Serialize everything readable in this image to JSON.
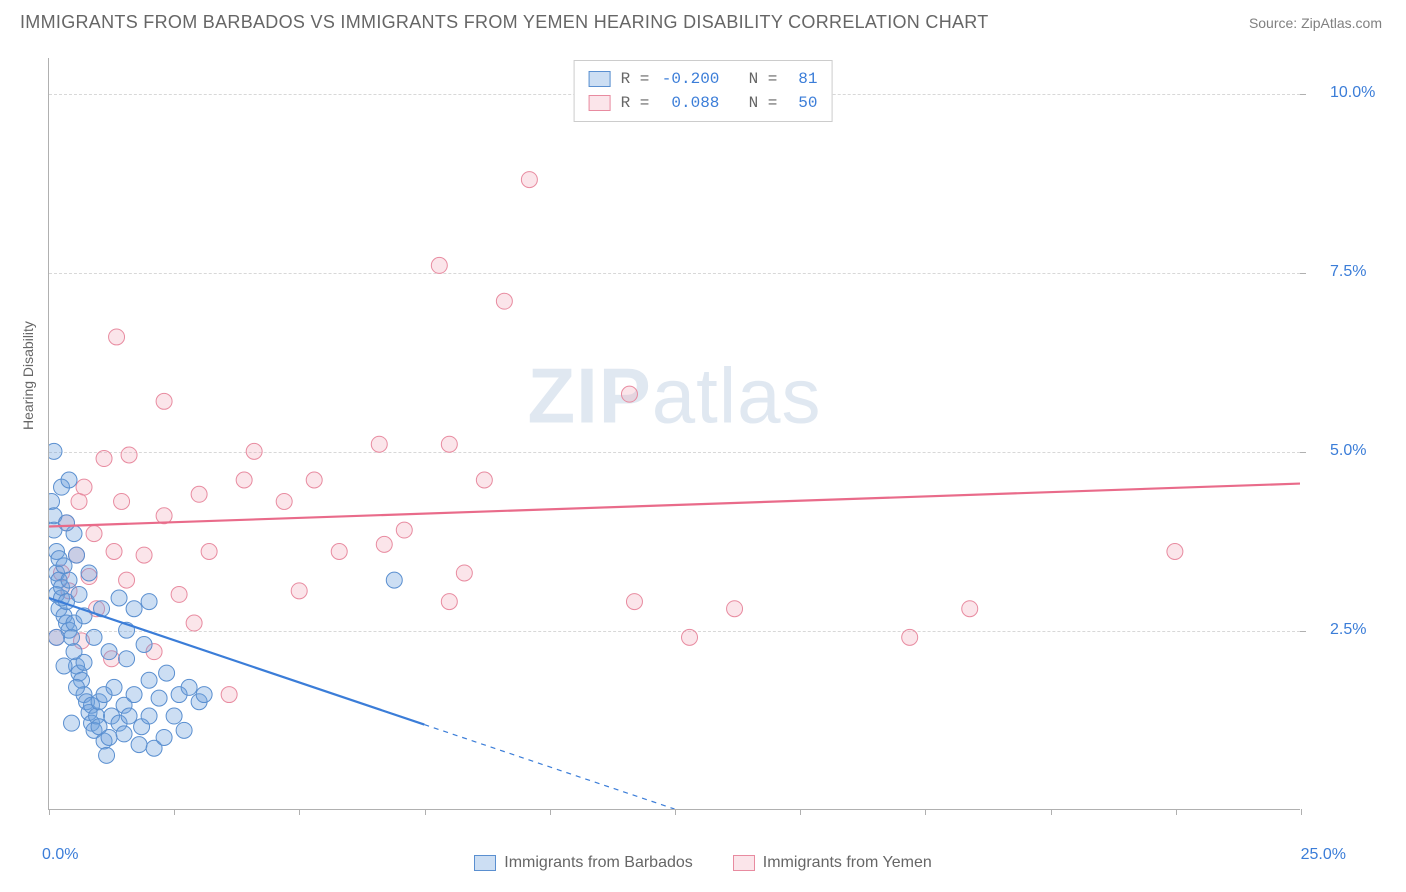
{
  "title": "IMMIGRANTS FROM BARBADOS VS IMMIGRANTS FROM YEMEN HEARING DISABILITY CORRELATION CHART",
  "source": "Source: ZipAtlas.com",
  "watermark_bold": "ZIP",
  "watermark_light": "atlas",
  "y_axis_label": "Hearing Disability",
  "chart": {
    "type": "scatter",
    "xlim": [
      0,
      25
    ],
    "ylim": [
      0,
      10.5
    ],
    "x_ticks": [
      0,
      2.5,
      5,
      7.5,
      10,
      12.5,
      15,
      17.5,
      20,
      22.5,
      25
    ],
    "x_tick_labels": {
      "0": "0.0%",
      "25": "25.0%"
    },
    "y_grid": [
      2.5,
      5.0,
      7.5,
      10.0
    ],
    "y_tick_labels": {
      "2.5": "2.5%",
      "5.0": "5.0%",
      "7.5": "7.5%",
      "10.0": "10.0%"
    },
    "background_color": "#ffffff",
    "grid_color": "#d8d8d8",
    "axis_color": "#b0b0b0",
    "marker_radius": 8,
    "series": {
      "barbados": {
        "label": "Immigrants from Barbados",
        "fill": "rgba(110,160,220,0.35)",
        "stroke": "#5a8fd0",
        "R": "-0.200",
        "N": "81",
        "trend": {
          "x1": 0,
          "y1": 2.95,
          "x2": 12.5,
          "y2": 0.0,
          "color": "#3b7dd8"
        },
        "points": [
          [
            0.05,
            4.3
          ],
          [
            0.1,
            4.1
          ],
          [
            0.1,
            3.9
          ],
          [
            0.15,
            3.6
          ],
          [
            0.15,
            3.3
          ],
          [
            0.2,
            3.5
          ],
          [
            0.2,
            3.2
          ],
          [
            0.15,
            3.0
          ],
          [
            0.2,
            2.8
          ],
          [
            0.25,
            2.95
          ],
          [
            0.25,
            3.1
          ],
          [
            0.3,
            3.4
          ],
          [
            0.3,
            2.7
          ],
          [
            0.35,
            2.9
          ],
          [
            0.35,
            2.6
          ],
          [
            0.4,
            2.5
          ],
          [
            0.4,
            3.2
          ],
          [
            0.45,
            2.4
          ],
          [
            0.5,
            2.2
          ],
          [
            0.5,
            2.6
          ],
          [
            0.55,
            2.0
          ],
          [
            0.6,
            1.9
          ],
          [
            0.65,
            1.8
          ],
          [
            0.7,
            2.05
          ],
          [
            0.7,
            1.6
          ],
          [
            0.75,
            1.5
          ],
          [
            0.8,
            1.35
          ],
          [
            0.85,
            1.2
          ],
          [
            0.85,
            1.45
          ],
          [
            0.9,
            1.1
          ],
          [
            0.95,
            1.3
          ],
          [
            1.0,
            1.5
          ],
          [
            1.0,
            1.15
          ],
          [
            1.1,
            1.6
          ],
          [
            1.1,
            0.95
          ],
          [
            1.2,
            1.0
          ],
          [
            1.25,
            1.3
          ],
          [
            1.3,
            1.7
          ],
          [
            1.4,
            1.2
          ],
          [
            1.5,
            1.45
          ],
          [
            1.5,
            1.05
          ],
          [
            1.55,
            2.1
          ],
          [
            1.6,
            1.3
          ],
          [
            1.7,
            1.6
          ],
          [
            1.8,
            0.9
          ],
          [
            1.85,
            1.15
          ],
          [
            1.9,
            2.3
          ],
          [
            2.0,
            1.8
          ],
          [
            2.0,
            1.3
          ],
          [
            2.1,
            0.85
          ],
          [
            2.2,
            1.55
          ],
          [
            2.3,
            1.0
          ],
          [
            2.35,
            1.9
          ],
          [
            2.5,
            1.3
          ],
          [
            2.6,
            1.6
          ],
          [
            2.7,
            1.1
          ],
          [
            2.8,
            1.7
          ],
          [
            3.0,
            1.5
          ],
          [
            3.1,
            1.6
          ],
          [
            0.25,
            4.5
          ],
          [
            0.4,
            4.6
          ],
          [
            0.5,
            3.85
          ],
          [
            0.1,
            5.0
          ],
          [
            0.35,
            4.0
          ],
          [
            0.55,
            3.55
          ],
          [
            0.6,
            3.0
          ],
          [
            0.7,
            2.7
          ],
          [
            0.8,
            3.3
          ],
          [
            0.9,
            2.4
          ],
          [
            1.05,
            2.8
          ],
          [
            1.2,
            2.2
          ],
          [
            1.4,
            2.95
          ],
          [
            1.55,
            2.5
          ],
          [
            1.7,
            2.8
          ],
          [
            2.0,
            2.9
          ],
          [
            0.15,
            2.4
          ],
          [
            0.3,
            2.0
          ],
          [
            0.55,
            1.7
          ],
          [
            6.9,
            3.2
          ],
          [
            0.45,
            1.2
          ],
          [
            1.15,
            0.75
          ]
        ]
      },
      "yemen": {
        "label": "Immigrants from Yemen",
        "fill": "rgba(240,150,170,0.25)",
        "stroke": "#e88ba0",
        "R": "0.088",
        "N": "50",
        "trend": {
          "x1": 0,
          "y1": 3.95,
          "x2": 25,
          "y2": 4.55,
          "color": "#e96b8a"
        },
        "points": [
          [
            9.6,
            8.8
          ],
          [
            7.8,
            7.6
          ],
          [
            9.1,
            7.1
          ],
          [
            1.35,
            6.6
          ],
          [
            2.3,
            5.7
          ],
          [
            11.6,
            5.8
          ],
          [
            8.0,
            5.1
          ],
          [
            6.6,
            5.1
          ],
          [
            4.1,
            5.0
          ],
          [
            1.6,
            4.95
          ],
          [
            1.1,
            4.9
          ],
          [
            3.9,
            4.6
          ],
          [
            8.7,
            4.6
          ],
          [
            5.3,
            4.6
          ],
          [
            0.7,
            4.5
          ],
          [
            3.0,
            4.4
          ],
          [
            1.45,
            4.3
          ],
          [
            0.6,
            4.3
          ],
          [
            4.7,
            4.3
          ],
          [
            2.3,
            4.1
          ],
          [
            0.35,
            4.0
          ],
          [
            7.1,
            3.9
          ],
          [
            0.9,
            3.85
          ],
          [
            6.7,
            3.7
          ],
          [
            1.3,
            3.6
          ],
          [
            0.55,
            3.55
          ],
          [
            1.9,
            3.55
          ],
          [
            5.8,
            3.6
          ],
          [
            3.2,
            3.6
          ],
          [
            8.3,
            3.3
          ],
          [
            22.5,
            3.6
          ],
          [
            0.25,
            3.3
          ],
          [
            0.8,
            3.25
          ],
          [
            1.55,
            3.2
          ],
          [
            2.6,
            3.0
          ],
          [
            0.4,
            3.05
          ],
          [
            8.0,
            2.9
          ],
          [
            11.7,
            2.9
          ],
          [
            0.95,
            2.8
          ],
          [
            13.7,
            2.8
          ],
          [
            18.4,
            2.8
          ],
          [
            12.8,
            2.4
          ],
          [
            17.2,
            2.4
          ],
          [
            0.15,
            2.4
          ],
          [
            3.6,
            1.6
          ],
          [
            2.1,
            2.2
          ],
          [
            1.25,
            2.1
          ],
          [
            0.65,
            2.35
          ],
          [
            2.9,
            2.6
          ],
          [
            5.0,
            3.05
          ]
        ]
      }
    }
  },
  "legend_top": [
    {
      "swatch_fill": "rgba(110,160,220,0.35)",
      "swatch_stroke": "#5a8fd0",
      "R": "-0.200",
      "N": "81"
    },
    {
      "swatch_fill": "rgba(240,150,170,0.25)",
      "swatch_stroke": "#e88ba0",
      "R": " 0.088",
      "N": "50"
    }
  ]
}
